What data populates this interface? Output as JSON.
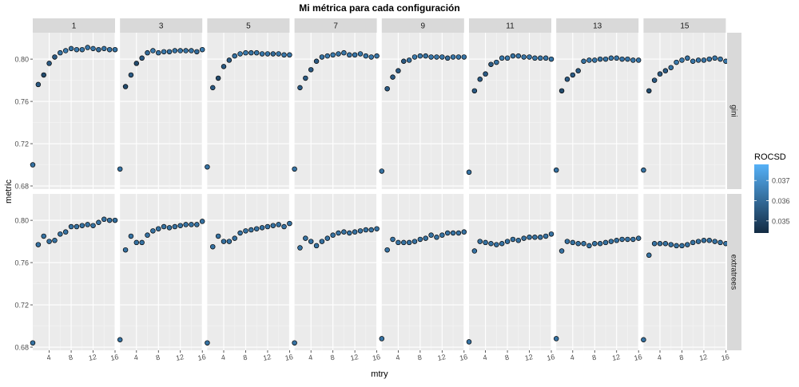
{
  "chart_data": {
    "type": "scatter",
    "title": "Mi métrica para cada configuración",
    "xlabel": "mtry",
    "ylabel": "metric",
    "xlim": [
      1,
      16
    ],
    "ylim": [
      0.677,
      0.825
    ],
    "x_ticks": [
      4,
      8,
      12,
      16
    ],
    "y_ticks": [
      0.68,
      0.72,
      0.76,
      0.8
    ],
    "y_tick_labels": [
      "0.68",
      "0.72",
      "0.76",
      "0.80"
    ],
    "x_tick_labels": [
      "4",
      "8",
      "12",
      "16"
    ],
    "grid": true,
    "legend": {
      "title": "ROCSD",
      "position": "right",
      "breaks": [
        "0.037",
        "0.036",
        "0.035"
      ],
      "break_values": [
        0.037,
        0.036,
        0.035
      ],
      "range": [
        0.0344,
        0.0378
      ],
      "color_low": "#132B43",
      "color_high": "#56B1F7"
    },
    "panel_columns": [
      "1",
      "3",
      "5",
      "7",
      "9",
      "11",
      "13",
      "15"
    ],
    "panel_rows": [
      "gini",
      "extratrees"
    ],
    "x": [
      1,
      2,
      3,
      4,
      5,
      6,
      7,
      8,
      9,
      10,
      11,
      12,
      13,
      14,
      15,
      16
    ],
    "panels": {
      "gini": {
        "1": [
          0.7,
          0.776,
          0.785,
          0.796,
          0.802,
          0.806,
          0.808,
          0.81,
          0.809,
          0.809,
          0.811,
          0.81,
          0.809,
          0.81,
          0.809,
          0.809
        ],
        "3": [
          0.696,
          0.774,
          0.785,
          0.796,
          0.801,
          0.806,
          0.808,
          0.806,
          0.807,
          0.807,
          0.808,
          0.808,
          0.808,
          0.808,
          0.807,
          0.809
        ],
        "5": [
          0.698,
          0.773,
          0.782,
          0.793,
          0.799,
          0.803,
          0.805,
          0.806,
          0.806,
          0.806,
          0.805,
          0.805,
          0.805,
          0.805,
          0.804,
          0.804
        ],
        "7": [
          0.696,
          0.773,
          0.782,
          0.79,
          0.798,
          0.802,
          0.803,
          0.804,
          0.805,
          0.806,
          0.804,
          0.804,
          0.805,
          0.803,
          0.802,
          0.803
        ],
        "9": [
          0.694,
          0.772,
          0.783,
          0.789,
          0.798,
          0.799,
          0.802,
          0.803,
          0.803,
          0.802,
          0.802,
          0.802,
          0.801,
          0.802,
          0.802,
          0.802
        ],
        "11": [
          0.693,
          0.77,
          0.781,
          0.786,
          0.795,
          0.797,
          0.801,
          0.801,
          0.803,
          0.803,
          0.802,
          0.802,
          0.801,
          0.801,
          0.801,
          0.8
        ],
        "13": [
          0.695,
          0.77,
          0.781,
          0.785,
          0.789,
          0.798,
          0.799,
          0.799,
          0.8,
          0.8,
          0.801,
          0.801,
          0.8,
          0.8,
          0.799,
          0.799
        ],
        "15": [
          0.695,
          0.77,
          0.78,
          0.786,
          0.789,
          0.792,
          0.797,
          0.799,
          0.801,
          0.798,
          0.799,
          0.799,
          0.8,
          0.801,
          0.8,
          0.798
        ]
      },
      "extratrees": {
        "1": [
          0.684,
          0.777,
          0.785,
          0.78,
          0.781,
          0.787,
          0.789,
          0.794,
          0.794,
          0.795,
          0.796,
          0.795,
          0.798,
          0.801,
          0.8,
          0.8
        ],
        "3": [
          0.687,
          0.772,
          0.785,
          0.779,
          0.779,
          0.786,
          0.79,
          0.792,
          0.794,
          0.793,
          0.794,
          0.795,
          0.796,
          0.796,
          0.796,
          0.799
        ],
        "5": [
          0.684,
          0.775,
          0.785,
          0.78,
          0.78,
          0.783,
          0.788,
          0.79,
          0.791,
          0.792,
          0.793,
          0.794,
          0.795,
          0.796,
          0.794,
          0.797
        ],
        "7": [
          0.684,
          0.774,
          0.783,
          0.78,
          0.776,
          0.78,
          0.783,
          0.786,
          0.788,
          0.789,
          0.788,
          0.789,
          0.79,
          0.791,
          0.791,
          0.792
        ],
        "9": [
          0.688,
          0.772,
          0.782,
          0.779,
          0.779,
          0.779,
          0.78,
          0.782,
          0.783,
          0.786,
          0.784,
          0.786,
          0.788,
          0.788,
          0.788,
          0.789
        ],
        "11": [
          0.685,
          0.771,
          0.78,
          0.779,
          0.778,
          0.777,
          0.778,
          0.78,
          0.782,
          0.781,
          0.783,
          0.784,
          0.784,
          0.784,
          0.785,
          0.787
        ],
        "13": [
          0.688,
          0.771,
          0.78,
          0.779,
          0.778,
          0.778,
          0.776,
          0.778,
          0.778,
          0.779,
          0.78,
          0.781,
          0.782,
          0.782,
          0.782,
          0.783
        ],
        "15": [
          0.687,
          0.767,
          0.778,
          0.778,
          0.778,
          0.777,
          0.776,
          0.776,
          0.777,
          0.779,
          0.78,
          0.781,
          0.781,
          0.78,
          0.779,
          0.778
        ]
      }
    },
    "rocsd": {
      "gini": {
        "1": [
          0.0362,
          0.0356,
          0.0352,
          0.0356,
          0.0356,
          0.0362,
          0.0364,
          0.0362,
          0.0364,
          0.0363,
          0.0363,
          0.0363,
          0.036,
          0.0363,
          0.0363,
          0.0363
        ],
        "3": [
          0.0362,
          0.0352,
          0.0356,
          0.0352,
          0.0356,
          0.036,
          0.0364,
          0.0362,
          0.0364,
          0.0362,
          0.0363,
          0.0363,
          0.0362,
          0.0363,
          0.036,
          0.0364
        ],
        "5": [
          0.0362,
          0.0356,
          0.0352,
          0.0356,
          0.0356,
          0.0362,
          0.0364,
          0.0364,
          0.0362,
          0.0363,
          0.0363,
          0.0363,
          0.036,
          0.0363,
          0.0363,
          0.0363
        ],
        "7": [
          0.0362,
          0.0356,
          0.0356,
          0.0356,
          0.0356,
          0.0362,
          0.0364,
          0.0364,
          0.0362,
          0.0363,
          0.0363,
          0.0363,
          0.0363,
          0.0363,
          0.0363,
          0.0363
        ],
        "9": [
          0.0362,
          0.0356,
          0.0356,
          0.0356,
          0.0356,
          0.0362,
          0.0364,
          0.0364,
          0.0362,
          0.0363,
          0.0363,
          0.0363,
          0.036,
          0.0363,
          0.0363,
          0.0363
        ],
        "11": [
          0.0362,
          0.0356,
          0.0356,
          0.0356,
          0.0356,
          0.0362,
          0.0364,
          0.0364,
          0.0362,
          0.0363,
          0.0363,
          0.0363,
          0.0363,
          0.0363,
          0.0363,
          0.0363
        ],
        "13": [
          0.0362,
          0.0352,
          0.0356,
          0.0356,
          0.0356,
          0.0362,
          0.0364,
          0.0364,
          0.0362,
          0.0363,
          0.0363,
          0.0363,
          0.0363,
          0.0363,
          0.0363,
          0.0363
        ],
        "15": [
          0.0362,
          0.0352,
          0.0356,
          0.0356,
          0.0356,
          0.0362,
          0.0364,
          0.0364,
          0.0362,
          0.0363,
          0.0363,
          0.0363,
          0.0363,
          0.0363,
          0.0363,
          0.0363
        ]
      },
      "extratrees": {
        "1": [
          0.0362,
          0.0362,
          0.0362,
          0.0362,
          0.0362,
          0.0362,
          0.0362,
          0.0362,
          0.0362,
          0.0362,
          0.0362,
          0.0362,
          0.0362,
          0.0362,
          0.0362,
          0.0362
        ],
        "3": [
          0.0362,
          0.0362,
          0.0362,
          0.0362,
          0.0362,
          0.0362,
          0.0362,
          0.0362,
          0.0362,
          0.0362,
          0.0362,
          0.0362,
          0.0362,
          0.0362,
          0.0362,
          0.0362
        ],
        "5": [
          0.0362,
          0.0362,
          0.0362,
          0.0362,
          0.0362,
          0.0362,
          0.0362,
          0.0362,
          0.0362,
          0.0362,
          0.0362,
          0.0362,
          0.0362,
          0.0362,
          0.0362,
          0.0362
        ],
        "7": [
          0.0362,
          0.0362,
          0.0362,
          0.0362,
          0.0362,
          0.0362,
          0.0362,
          0.0362,
          0.0362,
          0.0362,
          0.0362,
          0.0362,
          0.0362,
          0.0362,
          0.0362,
          0.0362
        ],
        "9": [
          0.0362,
          0.0362,
          0.0362,
          0.0362,
          0.0362,
          0.0362,
          0.0362,
          0.0362,
          0.0362,
          0.0362,
          0.0362,
          0.0362,
          0.0362,
          0.0362,
          0.0362,
          0.0362
        ],
        "11": [
          0.0362,
          0.0362,
          0.0362,
          0.0362,
          0.0362,
          0.0362,
          0.0362,
          0.0362,
          0.0362,
          0.0362,
          0.0362,
          0.0362,
          0.0362,
          0.0362,
          0.0362,
          0.0362
        ],
        "13": [
          0.0362,
          0.0362,
          0.0362,
          0.0362,
          0.0362,
          0.0362,
          0.0362,
          0.0362,
          0.0362,
          0.0362,
          0.0362,
          0.0362,
          0.0362,
          0.0362,
          0.0362,
          0.0362
        ],
        "15": [
          0.0362,
          0.0362,
          0.0362,
          0.0362,
          0.0362,
          0.0362,
          0.0362,
          0.0362,
          0.0362,
          0.0362,
          0.0362,
          0.0362,
          0.0362,
          0.0362,
          0.0362,
          0.0362
        ]
      }
    },
    "colors": {
      "panel_bg": "#EBEBEB",
      "grid_major": "#FFFFFF",
      "strip_bg": "#D9D9D9",
      "point_outline": "#000000"
    }
  }
}
